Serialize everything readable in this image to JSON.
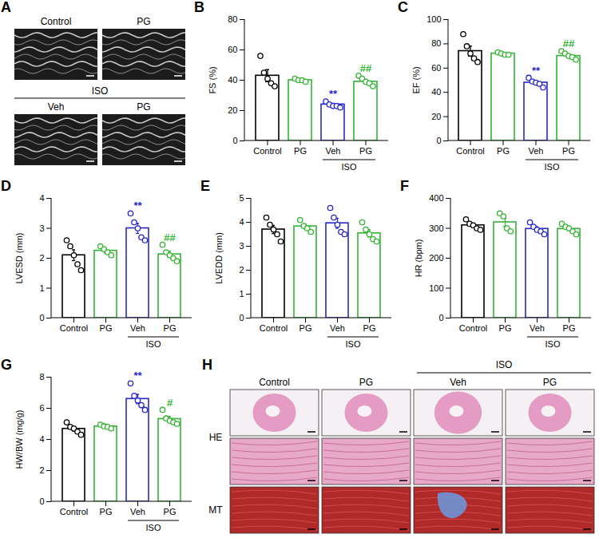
{
  "chart_data": [
    {
      "panel": "B",
      "type": "bar",
      "categories": [
        "Control",
        "PG",
        "Veh",
        "PG"
      ],
      "group": {
        "label": "ISO",
        "categories": [
          "Veh",
          "PG"
        ]
      },
      "ylabel": "FS (%)",
      "ylim": [
        0,
        80
      ],
      "yticks": [
        0,
        20,
        40,
        60,
        80
      ],
      "values": [
        43,
        40,
        24,
        39
      ],
      "errors": [
        4,
        0.5,
        0.8,
        1.3
      ],
      "points": [
        [
          56,
          45,
          41,
          38,
          36
        ],
        [
          41,
          40,
          40,
          39
        ],
        [
          26,
          24,
          23,
          23,
          22
        ],
        [
          43,
          41,
          39,
          38,
          36
        ]
      ],
      "colors": [
        "#000000",
        "#33b433",
        "#2828c8",
        "#33b433"
      ],
      "significance": [
        null,
        null,
        "**",
        "##"
      ]
    },
    {
      "panel": "C",
      "type": "bar",
      "categories": [
        "Control",
        "PG",
        "Veh",
        "PG"
      ],
      "group": {
        "label": "ISO",
        "categories": [
          "Veh",
          "PG"
        ]
      },
      "ylabel": "EF (%)",
      "ylim": [
        0,
        100
      ],
      "yticks": [
        0,
        20,
        40,
        60,
        80,
        100
      ],
      "values": [
        74,
        72,
        48,
        70
      ],
      "errors": [
        4.2,
        0.6,
        1.3,
        1.2
      ],
      "points": [
        [
          88,
          78,
          72,
          68,
          65
        ],
        [
          73,
          72,
          71,
          71
        ],
        [
          52,
          49,
          48,
          47,
          44
        ],
        [
          74,
          72,
          70,
          69,
          67
        ]
      ],
      "colors": [
        "#000000",
        "#33b433",
        "#2828c8",
        "#33b433"
      ],
      "significance": [
        null,
        null,
        "**",
        "##"
      ]
    },
    {
      "panel": "D",
      "type": "bar",
      "categories": [
        "Control",
        "PG",
        "Veh",
        "PG"
      ],
      "group": {
        "label": "ISO",
        "categories": [
          "Veh",
          "PG"
        ]
      },
      "ylabel": "LVESD (mm)",
      "ylim": [
        0,
        4
      ],
      "yticks": [
        0,
        1,
        2,
        3,
        4
      ],
      "values": [
        2.1,
        2.25,
        3.0,
        2.13
      ],
      "errors": [
        0.18,
        0.07,
        0.17,
        0.1
      ],
      "points": [
        [
          2.6,
          2.4,
          2.1,
          1.8,
          1.6
        ],
        [
          2.4,
          2.3,
          2.2,
          2.1
        ],
        [
          3.5,
          3.2,
          3.0,
          2.7,
          2.6
        ],
        [
          2.45,
          2.2,
          2.1,
          2.0,
          1.9
        ]
      ],
      "colors": [
        "#000000",
        "#33b433",
        "#2828c8",
        "#33b433"
      ],
      "significance": [
        null,
        null,
        "**",
        "##"
      ]
    },
    {
      "panel": "E",
      "type": "bar",
      "categories": [
        "Control",
        "PG",
        "Veh",
        "PG"
      ],
      "group": {
        "label": "ISO",
        "categories": [
          "Veh",
          "PG"
        ]
      },
      "ylabel": "LVEDD (mm)",
      "ylim": [
        0,
        5
      ],
      "yticks": [
        0,
        1,
        2,
        3,
        4,
        5
      ],
      "values": [
        3.7,
        3.83,
        3.96,
        3.54
      ],
      "errors": [
        0.17,
        0.1,
        0.21,
        0.15
      ],
      "points": [
        [
          4.2,
          3.9,
          3.7,
          3.5,
          3.2
        ],
        [
          4.1,
          3.85,
          3.75,
          3.6
        ],
        [
          4.6,
          4.2,
          3.9,
          3.6,
          3.5
        ],
        [
          4.0,
          3.7,
          3.5,
          3.3,
          3.2
        ]
      ],
      "colors": [
        "#000000",
        "#33b433",
        "#2828c8",
        "#33b433"
      ],
      "significance": [
        null,
        null,
        null,
        null
      ]
    },
    {
      "panel": "F",
      "type": "bar",
      "categories": [
        "Control",
        "PG",
        "Veh",
        "PG"
      ],
      "group": {
        "label": "ISO",
        "categories": [
          "Veh",
          "PG"
        ]
      },
      "ylabel": "HR (bpm)",
      "ylim": [
        0,
        400
      ],
      "yticks": [
        0,
        100,
        200,
        300,
        400
      ],
      "values": [
        310,
        320,
        298,
        298
      ],
      "errors": [
        7,
        14,
        7,
        6
      ],
      "points": [
        [
          330,
          315,
          310,
          300,
          295
        ],
        [
          350,
          340,
          300,
          290
        ],
        [
          320,
          305,
          295,
          290,
          280
        ],
        [
          315,
          305,
          300,
          290,
          280
        ]
      ],
      "colors": [
        "#000000",
        "#33b433",
        "#2828c8",
        "#33b433"
      ],
      "significance": [
        null,
        null,
        null,
        null
      ]
    },
    {
      "panel": "G",
      "type": "bar",
      "categories": [
        "Control",
        "PG",
        "Veh",
        "PG"
      ],
      "group": {
        "label": "ISO",
        "categories": [
          "Veh",
          "PG"
        ]
      },
      "ylabel": "HW/BW (mg/g)",
      "ylim": [
        0,
        8
      ],
      "yticks": [
        0,
        2,
        4,
        6,
        8
      ],
      "values": [
        4.68,
        4.83,
        6.6,
        5.31
      ],
      "errors": [
        0.14,
        0.05,
        0.3,
        0.16
      ],
      "points": [
        [
          5.1,
          4.8,
          4.7,
          4.5,
          4.3
        ],
        [
          4.95,
          4.85,
          4.8,
          4.7
        ],
        [
          7.6,
          6.8,
          6.5,
          6.2,
          5.9
        ],
        [
          5.9,
          5.35,
          5.2,
          5.1,
          5.0
        ]
      ],
      "colors": [
        "#000000",
        "#33b433",
        "#2828c8",
        "#33b433"
      ],
      "significance": [
        null,
        null,
        "**",
        "#"
      ]
    }
  ],
  "image_panels": [
    {
      "panel": "A",
      "top_row": [
        "Control",
        "PG"
      ],
      "bottom_row": [
        "Veh",
        "PG"
      ],
      "bottom_group": "ISO"
    },
    {
      "panel": "H",
      "columns": [
        "Control",
        "PG",
        "Veh",
        "PG"
      ],
      "group": {
        "label": "ISO",
        "columns": [
          "Veh",
          "PG"
        ]
      },
      "rows": [
        "HE",
        "MT"
      ]
    }
  ]
}
